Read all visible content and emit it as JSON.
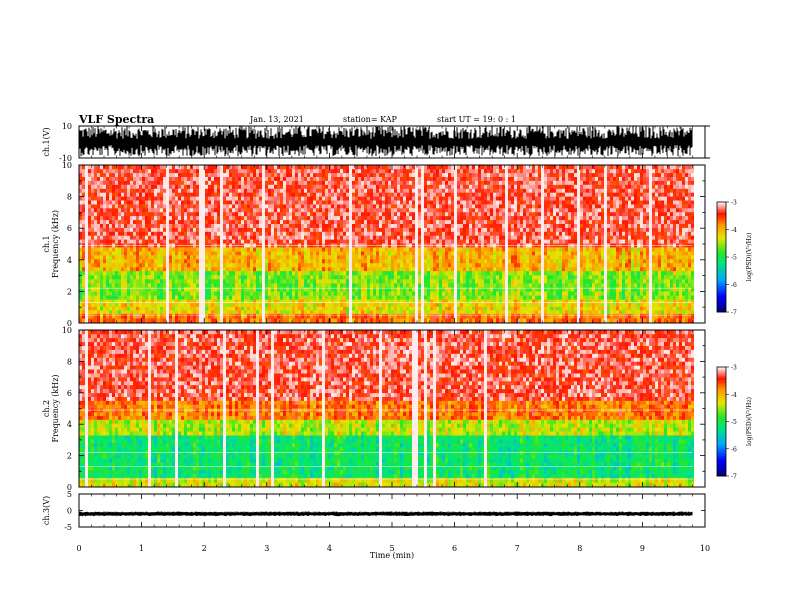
{
  "header": {
    "title": "VLF Spectra",
    "date": "Jan. 13, 2021",
    "station": "station= KAP",
    "start": "start  UT =  19: 0  : 1"
  },
  "chart_data": [
    {
      "type": "line",
      "panel": "ch1-waveform",
      "ylabel": "ch.1(V)",
      "ylim": [
        -10,
        10
      ],
      "y_ticks": [
        "10",
        "-10"
      ],
      "xlim": [
        0,
        10
      ],
      "data_end_x": 9.8
    },
    {
      "type": "heatmap",
      "panel": "ch1-spectrogram",
      "ylabel": "ch.1\nFrequency  (kHz)",
      "ylim": [
        0,
        10
      ],
      "y_ticks": [
        "0",
        "2",
        "4",
        "6",
        "8",
        "10"
      ],
      "xlim": [
        0,
        10
      ],
      "data_end_x": 9.8,
      "colorbar": {
        "label": "log(PSD)(V²/Hz)",
        "range": [
          -7,
          -3
        ],
        "ticks": [
          "-3",
          "-4",
          "-5",
          "-6",
          "-7"
        ]
      },
      "bands": [
        {
          "from_khz": 0.0,
          "to_khz": 0.6,
          "level": -3.7
        },
        {
          "from_khz": 0.6,
          "to_khz": 1.5,
          "level": -4.2
        },
        {
          "from_khz": 1.5,
          "to_khz": 3.3,
          "level": -4.6
        },
        {
          "from_khz": 3.3,
          "to_khz": 4.8,
          "level": -4.0
        },
        {
          "from_khz": 4.8,
          "to_khz": 10.0,
          "level": -3.3
        }
      ]
    },
    {
      "type": "heatmap",
      "panel": "ch2-spectrogram",
      "ylabel": "ch.2\nFrequency  (kHz)",
      "ylim": [
        0,
        10
      ],
      "y_ticks": [
        "0",
        "2",
        "4",
        "6",
        "8",
        "10"
      ],
      "xlim": [
        0,
        10
      ],
      "data_end_x": 9.8,
      "colorbar": {
        "label": "log(PSD)(V²/Hz)",
        "range": [
          -7,
          -3
        ],
        "ticks": [
          "-3",
          "-4",
          "-5",
          "-6",
          "-7"
        ]
      },
      "bands": [
        {
          "from_khz": 0.0,
          "to_khz": 0.6,
          "level": -4.3
        },
        {
          "from_khz": 0.6,
          "to_khz": 3.3,
          "level": -5.1
        },
        {
          "from_khz": 3.3,
          "to_khz": 4.3,
          "level": -4.4
        },
        {
          "from_khz": 4.3,
          "to_khz": 5.5,
          "level": -3.7
        },
        {
          "from_khz": 5.5,
          "to_khz": 10.0,
          "level": -3.3
        }
      ]
    },
    {
      "type": "line",
      "panel": "ch3-waveform",
      "ylabel": "ch.3(V)",
      "ylim": [
        -5,
        5
      ],
      "y_ticks": [
        "5",
        "0",
        "-5"
      ],
      "xlim": [
        0,
        10
      ],
      "baseline_v": -1.0,
      "data_end_x": 9.8,
      "xlabel": "Time  (min)",
      "x_ticks": [
        "0",
        "1",
        "2",
        "3",
        "4",
        "5",
        "6",
        "7",
        "8",
        "9",
        "10"
      ]
    }
  ]
}
